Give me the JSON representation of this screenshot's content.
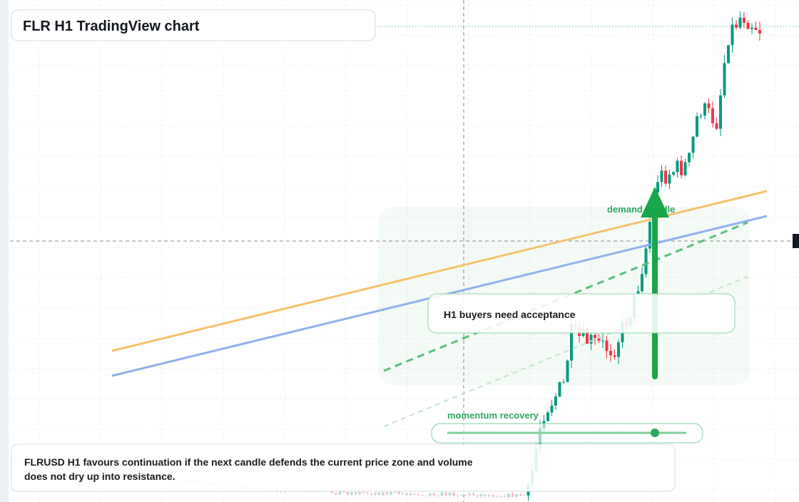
{
  "header": {
    "title": "FLR H1 TradingView chart"
  },
  "annotations": {
    "demand": "demand middle",
    "callout": "H1 buyers need acceptance",
    "momentum": "momentum recovery",
    "note": [
      "FLRUSD H1 favours continuation if the next candle defends the current price zone and volume",
      "does not dry up into resistance."
    ]
  }
}
